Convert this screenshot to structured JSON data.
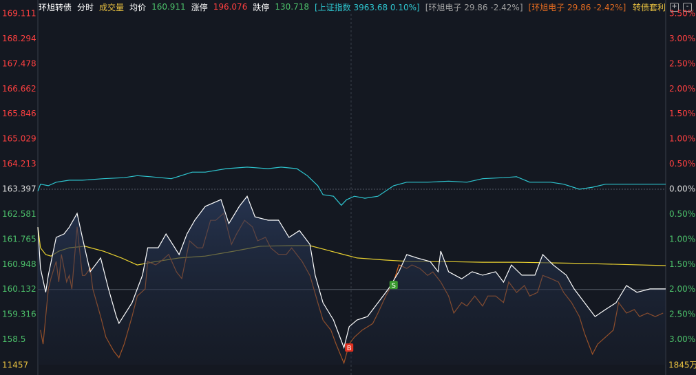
{
  "chart_data": {
    "type": "line",
    "header": [
      {
        "text": "环旭转债",
        "color": "#ffffff"
      },
      {
        "text": "分时",
        "color": "#ffffff"
      },
      {
        "text": "成交量",
        "color": "#e8c040"
      },
      {
        "text": "均价",
        "color": "#ffffff"
      },
      {
        "text": "160.911",
        "color": "#4cc06a"
      },
      {
        "text": "涨停",
        "color": "#ffffff"
      },
      {
        "text": "196.076",
        "color": "#ff4040"
      },
      {
        "text": "跌停",
        "color": "#ffffff"
      },
      {
        "text": "130.718",
        "color": "#4cc06a"
      },
      {
        "text": "[上证指数 3963.68 0.10%]",
        "color": "#2ec6d0"
      },
      {
        "text": "[环旭电子 29.86 -2.42%]",
        "color": "#a0a0a0"
      },
      {
        "text": "[环旭电子 29.86 -2.42%]",
        "color": "#e06a20"
      }
    ],
    "header_right": {
      "text": "转债套利",
      "color": "#e8c040"
    },
    "xlim": [
      0,
      240
    ],
    "ylim": [
      157.684,
      169.111
    ],
    "yticks": [
      169.111,
      168.294,
      167.478,
      166.662,
      165.846,
      165.029,
      164.213,
      163.397,
      162.581,
      161.765,
      160.948,
      160.132,
      159.316,
      158.5
    ],
    "y2lim": [
      -3.5,
      3.5
    ],
    "y2ticks": [
      {
        "value": 3.5,
        "label": "3.50%"
      },
      {
        "value": 3.0,
        "label": "3.00%"
      },
      {
        "value": 2.5,
        "label": "2.50%"
      },
      {
        "value": 2.0,
        "label": "2.00%"
      },
      {
        "value": 1.5,
        "label": "1.50%"
      },
      {
        "value": 1.0,
        "label": "1.00%"
      },
      {
        "value": 0.5,
        "label": "0.50%"
      },
      {
        "value": 0,
        "label": "0.00%"
      },
      {
        "value": -0.5,
        "label": "0.50%"
      },
      {
        "value": -1.0,
        "label": "1.00%"
      },
      {
        "value": -1.5,
        "label": "1.50%"
      },
      {
        "value": -2.0,
        "label": "2.00%"
      },
      {
        "value": -2.5,
        "label": "2.50%"
      },
      {
        "value": -3.0,
        "label": "3.00%"
      }
    ],
    "base": 163.397,
    "up_color": "#ff4040",
    "down_color": "#4cc06a",
    "base_color": "#dddddd",
    "reference_lines": [
      163.397,
      160.132
    ],
    "volume_left": 11457,
    "volume_right": "1845万",
    "volume_color": "#e8c040",
    "series": [
      {
        "color": "#2ec6d0",
        "axis": "y2",
        "x": [
          0,
          1,
          4,
          7,
          12,
          17,
          25,
          33,
          38,
          43,
          51,
          59,
          64,
          72,
          80,
          88,
          93,
          99,
          103,
          107,
          109,
          113,
          116,
          118,
          121,
          125,
          130,
          136,
          141,
          149,
          157,
          164,
          170,
          178,
          183,
          188,
          196,
          201,
          207,
          212,
          217,
          222,
          230,
          236,
          240
        ],
        "values": [
          -0.04,
          0.1,
          0.07,
          0.14,
          0.18,
          0.18,
          0.21,
          0.23,
          0.27,
          0.25,
          0.21,
          0.34,
          0.34,
          0.41,
          0.44,
          0.41,
          0.44,
          0.41,
          0.27,
          0.07,
          -0.11,
          -0.14,
          -0.32,
          -0.21,
          -0.14,
          -0.18,
          -0.14,
          0.07,
          0.14,
          0.14,
          0.16,
          0.14,
          0.21,
          0.23,
          0.25,
          0.14,
          0.14,
          0.1,
          0,
          0.04,
          0.1,
          0.1,
          0.1,
          0.1,
          0.1
        ]
      },
      {
        "color": "#e8d030",
        "x": [
          0,
          1,
          3,
          5,
          8,
          12,
          18,
          25,
          32,
          38,
          45,
          54,
          64,
          75,
          85,
          96,
          104,
          109,
          117,
          122,
          133,
          143,
          156,
          170,
          183,
          196,
          209,
          222,
          240
        ],
        "values": [
          162.16,
          161.49,
          161.27,
          161.22,
          161.38,
          161.49,
          161.54,
          161.38,
          161.16,
          160.93,
          161.04,
          161.16,
          161.22,
          161.38,
          161.54,
          161.56,
          161.56,
          161.45,
          161.27,
          161.16,
          161.09,
          161.04,
          161.04,
          161.02,
          161.02,
          161.0,
          160.98,
          160.95,
          160.91
        ]
      },
      {
        "color": "#e06a20",
        "axis": "y2",
        "x": [
          1,
          2,
          4,
          5,
          7,
          8,
          9,
          11,
          12,
          13,
          15,
          17,
          18,
          20,
          21,
          24,
          26,
          29,
          31,
          33,
          36,
          38,
          41,
          42,
          45,
          47,
          50,
          53,
          55,
          58,
          61,
          63,
          66,
          68,
          71,
          74,
          76,
          79,
          82,
          84,
          87,
          89,
          92,
          95,
          97,
          101,
          104,
          107,
          109,
          112,
          114,
          117,
          119,
          121,
          124,
          128,
          130,
          133,
          136,
          138,
          141,
          143,
          146,
          149,
          151,
          154,
          157,
          159,
          162,
          164,
          167,
          170,
          172,
          175,
          178,
          180,
          183,
          186,
          188,
          191,
          193,
          196,
          199,
          201,
          204,
          207,
          209,
          212,
          214,
          217,
          220,
          222,
          225,
          228,
          230,
          233,
          236,
          239
        ],
        "values": [
          -2.81,
          -3.09,
          -1.99,
          -1.78,
          -1.44,
          -1.85,
          -1.3,
          -1.85,
          -1.72,
          -1.99,
          -0.75,
          -1.72,
          -1.72,
          -1.58,
          -1.99,
          -2.54,
          -2.95,
          -3.23,
          -3.36,
          -3.09,
          -2.54,
          -2.13,
          -1.99,
          -1.44,
          -1.51,
          -1.44,
          -1.3,
          -1.65,
          -1.78,
          -1.03,
          -1.17,
          -1.17,
          -0.62,
          -0.62,
          -0.48,
          -1.1,
          -0.89,
          -0.62,
          -0.75,
          -1.03,
          -0.96,
          -1.17,
          -1.3,
          -1.3,
          -1.17,
          -1.44,
          -1.72,
          -2.26,
          -2.61,
          -2.81,
          -3.09,
          -3.47,
          -3.09,
          -2.95,
          -2.81,
          -2.68,
          -2.47,
          -2.13,
          -1.85,
          -1.51,
          -1.58,
          -1.51,
          -1.58,
          -1.72,
          -1.65,
          -1.85,
          -2.13,
          -2.47,
          -2.26,
          -2.33,
          -2.13,
          -2.33,
          -2.13,
          -2.13,
          -2.26,
          -1.85,
          -2.06,
          -1.92,
          -2.13,
          -2.06,
          -1.72,
          -1.78,
          -1.85,
          -2.06,
          -2.26,
          -2.54,
          -2.88,
          -3.29,
          -3.09,
          -2.95,
          -2.81,
          -2.26,
          -2.47,
          -2.4,
          -2.54,
          -2.47,
          -2.54,
          -2.47
        ]
      },
      {
        "color": "#ffffff",
        "area": true,
        "x": [
          0,
          1,
          3,
          4,
          7,
          10,
          12,
          15,
          17,
          20,
          24,
          27,
          30,
          31,
          36,
          40,
          42,
          46,
          49,
          54,
          57,
          60,
          64,
          70,
          73,
          77,
          80,
          83,
          88,
          92,
          96,
          100,
          104,
          106,
          109,
          113,
          117,
          119,
          122,
          126,
          130,
          134,
          138,
          141,
          145,
          150,
          153,
          154,
          157,
          162,
          166,
          170,
          175,
          178,
          181,
          185,
          190,
          193,
          197,
          202,
          205,
          209,
          213,
          217,
          221,
          225,
          229,
          234,
          240
        ],
        "values": [
          162.16,
          160.82,
          160.04,
          160.6,
          161.83,
          161.94,
          162.16,
          162.61,
          161.83,
          160.71,
          161.16,
          160.15,
          159.25,
          159.03,
          159.7,
          160.6,
          161.49,
          161.49,
          161.94,
          161.27,
          161.94,
          162.39,
          162.84,
          163.06,
          162.28,
          162.84,
          163.17,
          162.5,
          162.39,
          162.39,
          161.83,
          162.05,
          161.6,
          160.6,
          159.7,
          159.14,
          158.24,
          158.92,
          159.14,
          159.25,
          159.7,
          160.15,
          160.71,
          161.27,
          161.16,
          161.04,
          160.71,
          161.38,
          160.71,
          160.48,
          160.71,
          160.6,
          160.71,
          160.37,
          160.93,
          160.6,
          160.6,
          161.27,
          160.93,
          160.6,
          160.15,
          159.7,
          159.25,
          159.48,
          159.7,
          160.26,
          160.04,
          160.15,
          160.15
        ]
      }
    ],
    "annotations": [
      {
        "text": "B",
        "x": 119,
        "y": 158.24,
        "color": "#e03020"
      },
      {
        "text": "S",
        "x": 136,
        "y": 160.28,
        "color": "#3a9a30"
      }
    ]
  }
}
